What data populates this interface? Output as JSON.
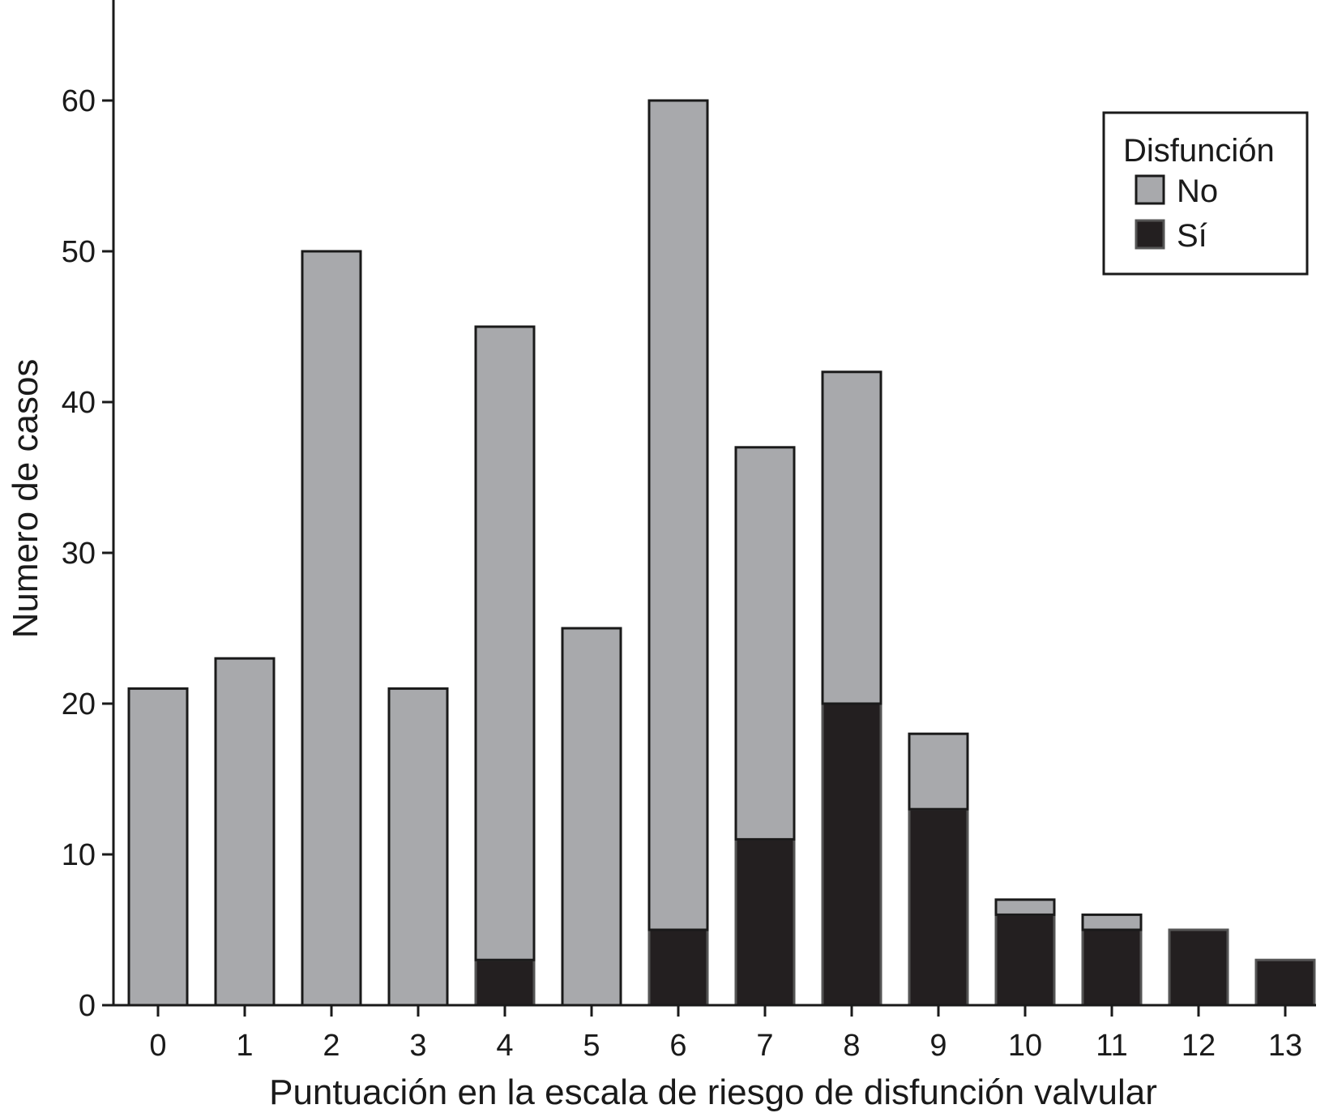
{
  "chart_data": {
    "type": "bar",
    "stacked": true,
    "categories": [
      "0",
      "1",
      "2",
      "3",
      "4",
      "5",
      "6",
      "7",
      "8",
      "9",
      "10",
      "11",
      "12",
      "13"
    ],
    "series": [
      {
        "name": "Sí",
        "color": "#231f20",
        "values": [
          0,
          0,
          0,
          0,
          3,
          0,
          5,
          11,
          20,
          13,
          6,
          5,
          5,
          3
        ]
      },
      {
        "name": "No",
        "color": "#a8a9ac",
        "values": [
          21,
          23,
          50,
          21,
          42,
          25,
          55,
          26,
          22,
          5,
          1,
          1,
          0,
          0
        ]
      }
    ],
    "xlabel": "Puntuación en la escala de riesgo de disfunción valvular",
    "ylabel": "Numero de casos",
    "ylim": [
      0,
      67
    ],
    "yticks": [
      0,
      10,
      20,
      30,
      40,
      50,
      60
    ],
    "grid": false,
    "legend": {
      "title": "Disfunción",
      "placement": "top-right",
      "entries": [
        "No",
        "Sí"
      ]
    }
  }
}
